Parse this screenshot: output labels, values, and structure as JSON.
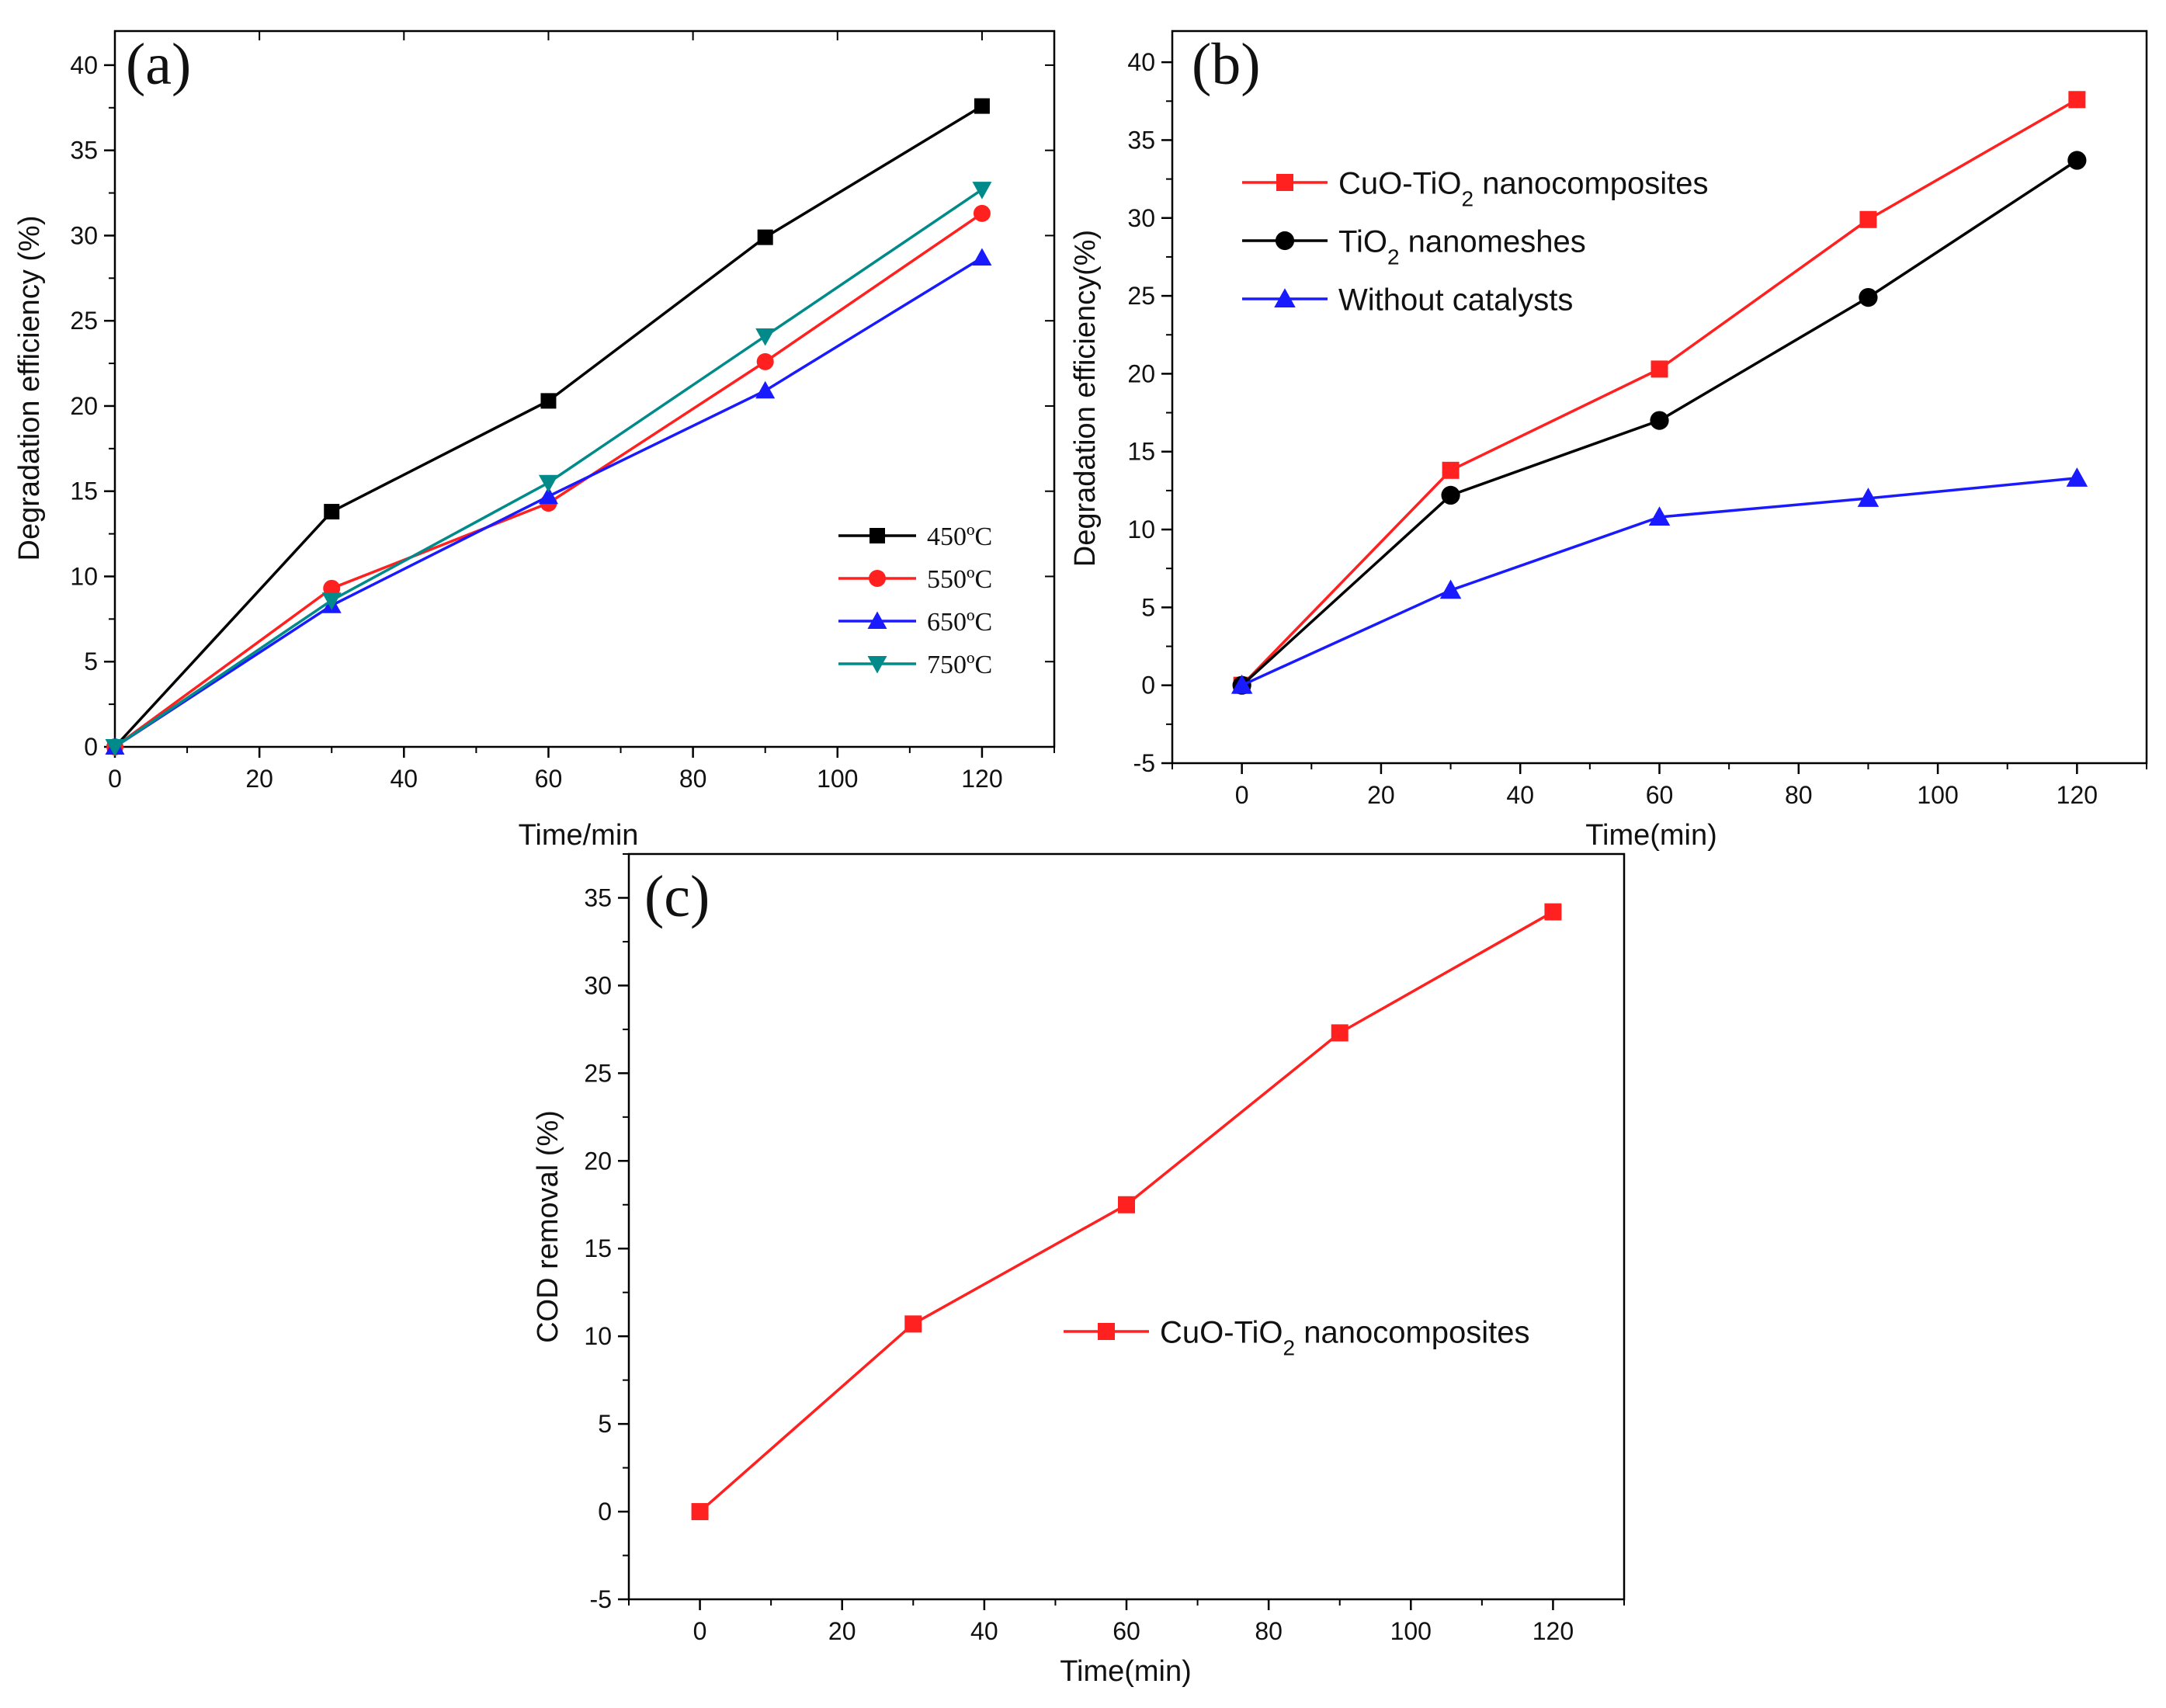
{
  "figure": {
    "colors": {
      "black": "#000000",
      "red": "#ff2020",
      "blue": "#1a1aff",
      "teal": "#008a8a"
    }
  },
  "chart_data": [
    {
      "panel": "(a)",
      "type": "line",
      "xlabel": "Time/min",
      "ylabel": "Degradation efficiency (%)",
      "xlim": [
        0,
        130
      ],
      "ylim": [
        0,
        42
      ],
      "xticks": [
        0,
        20,
        40,
        60,
        80,
        100,
        120
      ],
      "yticks": [
        0,
        5,
        10,
        15,
        20,
        25,
        30,
        35,
        40
      ],
      "legend_position": "lower-right",
      "series": [
        {
          "name": "450ºC",
          "color": "#000000",
          "marker": "square",
          "x": [
            0,
            30,
            60,
            90,
            120
          ],
          "values": [
            0,
            13.8,
            20.3,
            29.9,
            37.6
          ]
        },
        {
          "name": "550ºC",
          "color": "#ff2020",
          "marker": "circle",
          "x": [
            0,
            30,
            60,
            90,
            120
          ],
          "values": [
            0,
            9.3,
            14.3,
            22.6,
            31.3
          ]
        },
        {
          "name": "650ºC",
          "color": "#1a1aff",
          "marker": "triangle-up",
          "x": [
            0,
            30,
            60,
            90,
            120
          ],
          "values": [
            0,
            8.3,
            14.7,
            20.9,
            28.7
          ]
        },
        {
          "name": "750ºC",
          "color": "#008a8a",
          "marker": "triangle-down",
          "x": [
            0,
            30,
            60,
            90,
            120
          ],
          "values": [
            0,
            8.6,
            15.5,
            24.1,
            32.7
          ]
        }
      ]
    },
    {
      "panel": "(b)",
      "type": "line",
      "xlabel": "Time(min)",
      "ylabel": "Degradation efficiency(%)",
      "xlim": [
        -10,
        130
      ],
      "ylim": [
        -5,
        42
      ],
      "xticks": [
        0,
        20,
        40,
        60,
        80,
        100,
        120
      ],
      "yticks": [
        -5,
        0,
        5,
        10,
        15,
        20,
        25,
        30,
        35,
        40
      ],
      "legend_position": "top-left",
      "series": [
        {
          "name": "CuO-TiO2 nanocomposites",
          "color": "#ff2020",
          "marker": "square",
          "x": [
            0,
            30,
            60,
            90,
            120
          ],
          "values": [
            0,
            13.8,
            20.3,
            29.9,
            37.6
          ]
        },
        {
          "name": "TiO2 nanomeshes",
          "color": "#000000",
          "marker": "circle",
          "x": [
            0,
            30,
            60,
            90,
            120
          ],
          "values": [
            0,
            12.2,
            17.0,
            24.9,
            33.7
          ]
        },
        {
          "name": "Without catalysts",
          "color": "#1a1aff",
          "marker": "triangle-up",
          "x": [
            0,
            30,
            60,
            90,
            120
          ],
          "values": [
            0,
            6.1,
            10.8,
            12.0,
            13.3
          ]
        }
      ]
    },
    {
      "panel": "(c)",
      "type": "line",
      "xlabel": "Time(min)",
      "ylabel": "COD removal (%)",
      "xlim": [
        -10,
        130
      ],
      "ylim": [
        -5,
        37.5
      ],
      "xticks": [
        0,
        20,
        40,
        60,
        80,
        100,
        120
      ],
      "yticks": [
        -5,
        0,
        5,
        10,
        15,
        20,
        25,
        30,
        35
      ],
      "legend_position": "center-right",
      "series": [
        {
          "name": "CuO-TiO2 nanocomposites",
          "color": "#ff2020",
          "marker": "square",
          "x": [
            0,
            30,
            60,
            90,
            120
          ],
          "values": [
            0,
            10.7,
            17.5,
            27.3,
            34.2
          ]
        }
      ]
    }
  ]
}
